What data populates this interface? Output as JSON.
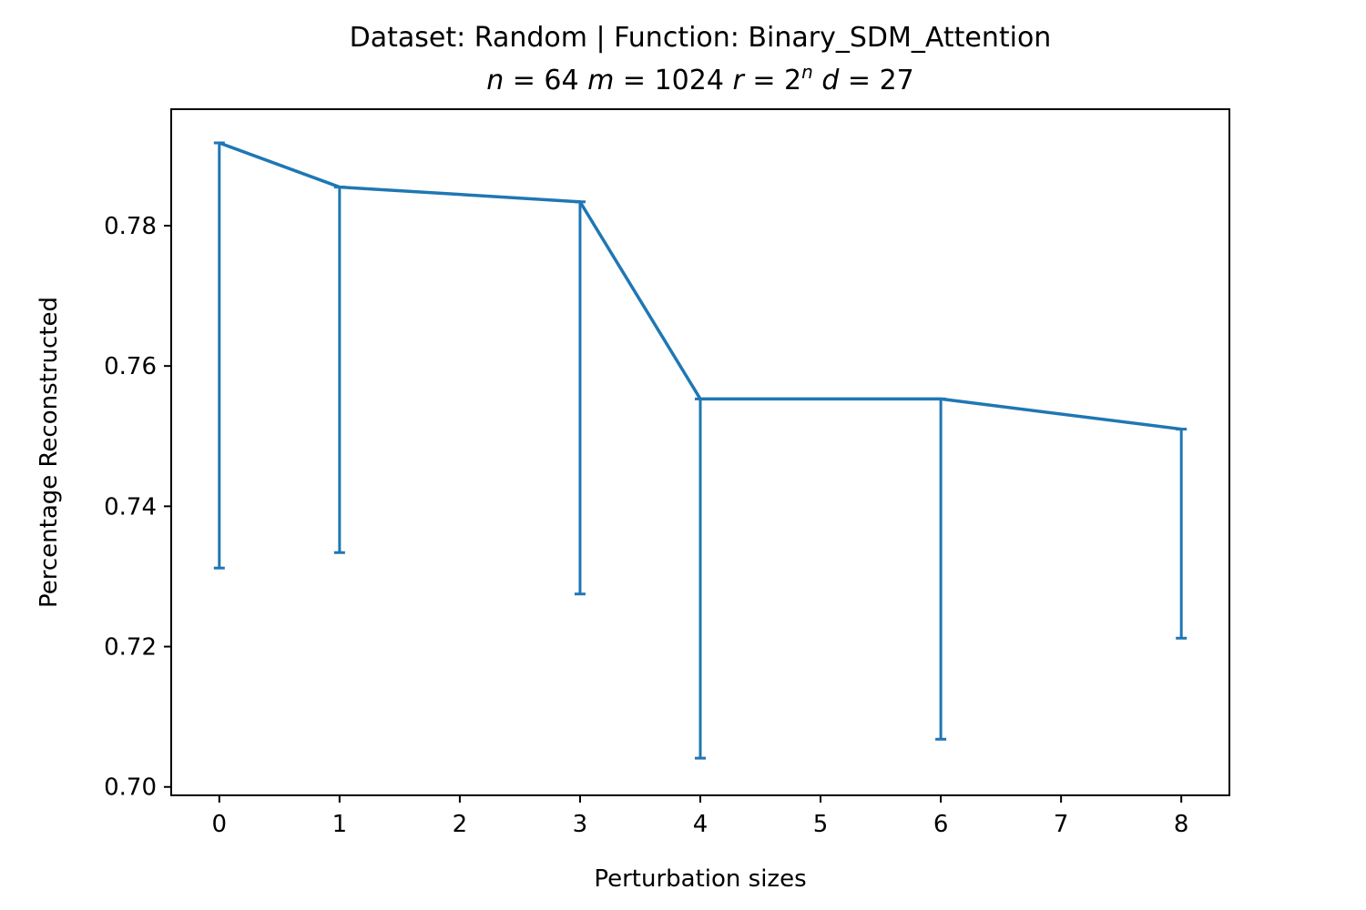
{
  "chart_data": {
    "type": "line",
    "title": "Dataset: Random | Function: Binary_SDM_Attention",
    "subtitle_parts": [
      {
        "text": "n",
        "italic": true
      },
      {
        "text": " = 64 ",
        "italic": false
      },
      {
        "text": "m",
        "italic": true
      },
      {
        "text": " = 1024 ",
        "italic": false
      },
      {
        "text": "r",
        "italic": true
      },
      {
        "text": " = 2",
        "italic": false
      },
      {
        "text": "n",
        "italic": true,
        "sup": true
      },
      {
        "text": " ",
        "italic": false
      },
      {
        "text": "d",
        "italic": true
      },
      {
        "text": " = 27",
        "italic": false
      }
    ],
    "xlabel": "Perturbation sizes",
    "ylabel": "Percentage Reconstructed",
    "xlim": [
      -0.4,
      8.4
    ],
    "ylim": [
      0.6988,
      0.7966
    ],
    "xticks": [
      0,
      1,
      2,
      3,
      4,
      5,
      6,
      7,
      8
    ],
    "xtick_labels": [
      "0",
      "1",
      "2",
      "3",
      "4",
      "5",
      "6",
      "7",
      "8"
    ],
    "yticks": [
      0.7,
      0.72,
      0.74,
      0.76,
      0.78
    ],
    "ytick_labels": [
      "0.70",
      "0.72",
      "0.74",
      "0.76",
      "0.78"
    ],
    "grid": false,
    "colors": {
      "series": "#1f77b4",
      "axes": "#000000"
    },
    "series": [
      {
        "x": [
          0,
          1,
          3,
          4,
          6,
          8
        ],
        "y": [
          0.7918,
          0.7855,
          0.7834,
          0.7553,
          0.7553,
          0.751
        ],
        "lower": [
          0.7312,
          0.7334,
          0.7275,
          0.7041,
          0.7068,
          0.7212
        ],
        "upper": [
          0.7918,
          0.7855,
          0.7834,
          0.7553,
          0.7553,
          0.751
        ]
      }
    ]
  }
}
